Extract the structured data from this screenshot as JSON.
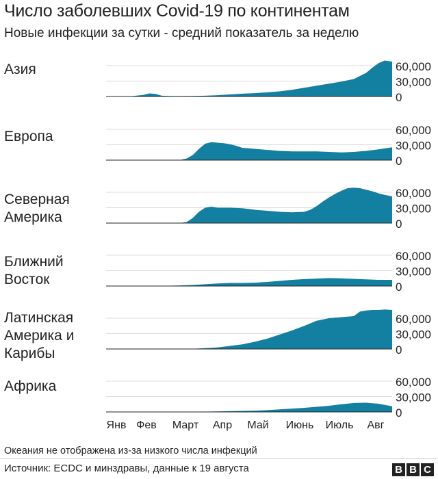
{
  "title": "Число заболевших Covid-19 по континентам",
  "subtitle": "Новые инфекции за сутки - средний показатель за неделю",
  "note": "Океания не отображена из-за низкого числа инфекций",
  "source": "Источник: ECDC и минздравы, данные к 19 августа",
  "logo": [
    "B",
    "B",
    "C"
  ],
  "colors": {
    "area": "#1380a1",
    "grid": "#dddddd",
    "axis": "#222222",
    "text": "#222222"
  },
  "chart_data": {
    "type": "area",
    "x_ticks": [
      "Янв",
      "Фев",
      "Март",
      "Апр",
      "Май",
      "Июнь",
      "Июль",
      "Авг"
    ],
    "x_range": [
      "Jan 1",
      "Aug 19"
    ],
    "y_ticks": [
      "0",
      "30,000",
      "60,000"
    ],
    "ylim": [
      0,
      75000
    ],
    "series": [
      {
        "name": "Азия",
        "label_lines": [
          "Азия"
        ],
        "x": [
          0,
          20,
          30,
          35,
          40,
          45,
          50,
          60,
          70,
          80,
          90,
          100,
          110,
          120,
          130,
          140,
          150,
          160,
          170,
          180,
          190,
          200,
          210,
          215,
          220,
          225,
          231
        ],
        "y": [
          0,
          500,
          3000,
          6000,
          5000,
          1500,
          1000,
          800,
          1000,
          1500,
          2500,
          4000,
          5500,
          6500,
          8000,
          10000,
          13000,
          17000,
          21000,
          25000,
          29000,
          34000,
          46000,
          56000,
          65000,
          70000,
          68000
        ]
      },
      {
        "name": "Европа",
        "label_lines": [
          "Европа"
        ],
        "x": [
          0,
          50,
          60,
          65,
          70,
          75,
          80,
          85,
          90,
          95,
          100,
          105,
          110,
          120,
          130,
          140,
          150,
          160,
          170,
          180,
          190,
          200,
          210,
          220,
          231
        ],
        "y": [
          0,
          0,
          500,
          3000,
          10000,
          22000,
          32000,
          35000,
          34000,
          33000,
          31000,
          28000,
          24000,
          22000,
          20000,
          18000,
          17000,
          17000,
          17000,
          16000,
          15000,
          16000,
          18000,
          21000,
          25000
        ]
      },
      {
        "name": "Северная Америка",
        "label_lines": [
          "Северная",
          "Америка"
        ],
        "x": [
          0,
          50,
          60,
          65,
          70,
          75,
          80,
          85,
          90,
          100,
          110,
          120,
          130,
          140,
          150,
          160,
          165,
          170,
          175,
          180,
          185,
          190,
          195,
          200,
          205,
          210,
          215,
          220,
          225,
          231
        ],
        "y": [
          0,
          0,
          300,
          2000,
          10000,
          22000,
          30000,
          32000,
          30000,
          30000,
          29000,
          26000,
          24000,
          22000,
          21000,
          22000,
          26000,
          33000,
          42000,
          50000,
          57000,
          63000,
          68000,
          69000,
          68000,
          65000,
          62000,
          58000,
          55000,
          52000
        ]
      },
      {
        "name": "Ближний Восток",
        "label_lines": [
          "Ближний",
          "Восток"
        ],
        "x": [
          0,
          40,
          50,
          60,
          70,
          80,
          90,
          100,
          110,
          120,
          130,
          140,
          150,
          160,
          170,
          180,
          190,
          200,
          210,
          220,
          231
        ],
        "y": [
          0,
          0,
          500,
          1200,
          2000,
          3500,
          5000,
          6000,
          6000,
          6500,
          8000,
          10000,
          12000,
          13500,
          14500,
          15500,
          15000,
          14000,
          13000,
          12000,
          12000
        ]
      },
      {
        "name": "Латинская Америка и Карибы",
        "label_lines": [
          "Латинская",
          "Америка и",
          "Карибы"
        ],
        "x": [
          0,
          50,
          60,
          70,
          80,
          90,
          100,
          110,
          120,
          130,
          140,
          150,
          160,
          170,
          180,
          190,
          200,
          205,
          210,
          215,
          220,
          225,
          231
        ],
        "y": [
          0,
          0,
          100,
          500,
          1500,
          3000,
          6000,
          9000,
          14000,
          20000,
          28000,
          36000,
          45000,
          55000,
          60000,
          62000,
          64000,
          73000,
          75000,
          76000,
          76000,
          77000,
          76000
        ]
      },
      {
        "name": "Африка",
        "label_lines": [
          "Африка"
        ],
        "x": [
          0,
          50,
          60,
          70,
          80,
          90,
          100,
          110,
          120,
          130,
          140,
          150,
          160,
          170,
          180,
          190,
          200,
          210,
          220,
          231
        ],
        "y": [
          0,
          0,
          100,
          300,
          600,
          1000,
          1500,
          2000,
          2500,
          3500,
          5000,
          6500,
          8000,
          10000,
          12000,
          15000,
          17500,
          18000,
          16000,
          11000
        ]
      }
    ]
  }
}
